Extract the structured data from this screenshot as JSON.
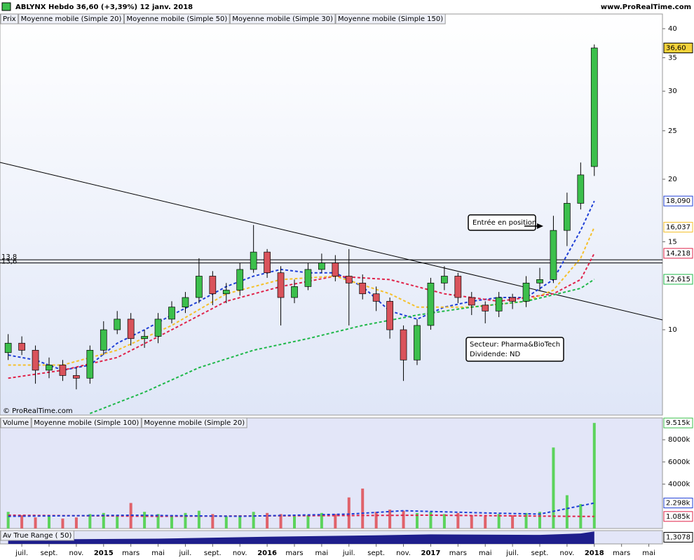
{
  "header": {
    "title": "ABLYNX   Hebdo   36,60 (+3,39%)   12 janv. 2018",
    "site": "www.ProRealTime.com"
  },
  "chart_data": [
    {
      "type": "candlestick",
      "legend": "Prix",
      "log_scale": true,
      "ylim": [
        6.75,
        42.8
      ],
      "yticks": [
        10,
        15,
        20,
        25,
        30,
        35,
        40
      ],
      "xlim": [
        -1.6,
        47
      ],
      "xticks": [
        {
          "value": 0,
          "label": "juil."
        },
        {
          "value": 2,
          "label": "sept."
        },
        {
          "value": 4,
          "label": "nov."
        },
        {
          "value": 6,
          "label": "2015"
        },
        {
          "value": 8,
          "label": "mars"
        },
        {
          "value": 10,
          "label": "mai"
        },
        {
          "value": 12,
          "label": "juil."
        },
        {
          "value": 14,
          "label": "sept."
        },
        {
          "value": 16,
          "label": "nov."
        },
        {
          "value": 18,
          "label": "2016"
        },
        {
          "value": 20,
          "label": "mars"
        },
        {
          "value": 22,
          "label": "mai"
        },
        {
          "value": 24,
          "label": "juil."
        },
        {
          "value": 26,
          "label": "sept."
        },
        {
          "value": 28,
          "label": "nov."
        },
        {
          "value": 30,
          "label": "2017"
        },
        {
          "value": 32,
          "label": "mars"
        },
        {
          "value": 34,
          "label": "mai"
        },
        {
          "value": 36,
          "label": "juil."
        },
        {
          "value": 38,
          "label": "sept."
        },
        {
          "value": 40,
          "label": "nov."
        },
        {
          "value": 42,
          "label": "2018"
        },
        {
          "value": 44,
          "label": "mars"
        },
        {
          "value": 46,
          "label": "mai"
        }
      ],
      "up_color": "#3cbf4c",
      "down_color": "#d9535b",
      "x": [
        -1,
        0,
        1,
        2,
        3,
        4,
        5,
        6,
        7,
        8,
        9,
        10,
        11,
        12,
        13,
        14,
        15,
        16,
        17,
        18,
        19,
        20,
        21,
        22,
        23,
        24,
        25,
        26,
        27,
        28,
        29,
        30,
        31,
        32,
        33,
        34,
        35,
        36,
        37,
        38,
        39,
        40,
        41,
        42
      ],
      "open": [
        9.0,
        9.4,
        9.1,
        8.3,
        8.5,
        8.1,
        8.0,
        9.1,
        10.0,
        10.5,
        9.6,
        9.7,
        10.5,
        11.1,
        11.6,
        12.8,
        11.8,
        12.0,
        13.2,
        14.3,
        13.0,
        11.6,
        12.2,
        13.2,
        13.6,
        12.8,
        12.4,
        11.8,
        11.4,
        10.0,
        8.7,
        10.2,
        12.4,
        12.8,
        11.6,
        11.2,
        10.9,
        11.6,
        11.4,
        12.4,
        12.6,
        15.8,
        17.9,
        21.2
      ],
      "high": [
        9.8,
        9.7,
        9.3,
        8.8,
        8.7,
        8.4,
        9.3,
        10.4,
        10.9,
        10.8,
        10.0,
        10.8,
        11.4,
        11.9,
        13.9,
        13.1,
        12.4,
        13.6,
        16.2,
        14.5,
        13.4,
        12.6,
        13.6,
        14.2,
        14.1,
        14.5,
        12.9,
        12.2,
        11.6,
        10.2,
        10.5,
        12.7,
        13.4,
        13.0,
        11.9,
        11.4,
        11.9,
        11.8,
        12.8,
        13.3,
        16.9,
        18.8,
        21.6,
        37.2
      ],
      "low": [
        8.7,
        8.9,
        7.8,
        8.0,
        7.9,
        7.6,
        7.8,
        8.9,
        9.8,
        9.3,
        9.2,
        9.4,
        10.3,
        10.8,
        11.3,
        11.2,
        11.3,
        11.7,
        13.0,
        12.7,
        10.2,
        11.3,
        12.0,
        13.0,
        12.5,
        10.2,
        11.5,
        10.9,
        9.6,
        7.9,
        8.5,
        10.0,
        12.0,
        11.3,
        10.7,
        10.3,
        10.6,
        11.0,
        11.1,
        12.0,
        12.4,
        14.7,
        17.4,
        20.3
      ],
      "close": [
        9.4,
        9.1,
        8.3,
        8.5,
        8.1,
        8.0,
        9.1,
        10.0,
        10.5,
        9.6,
        9.7,
        10.5,
        11.1,
        11.6,
        12.8,
        11.8,
        12.0,
        13.2,
        14.3,
        13.0,
        11.6,
        12.2,
        13.2,
        13.6,
        12.8,
        12.4,
        11.8,
        11.4,
        10.0,
        8.7,
        10.2,
        12.4,
        12.8,
        11.6,
        11.2,
        10.9,
        11.6,
        11.4,
        12.4,
        12.6,
        15.8,
        17.9,
        20.4,
        36.6
      ],
      "last_label": "36,60",
      "series": [
        {
          "name": "Moyenne mobile (Simple 20)",
          "color": "#1f3fd6",
          "x": [
            -1,
            1,
            3,
            5,
            7,
            9,
            11,
            13,
            15,
            17,
            19,
            21,
            23,
            25,
            27,
            29,
            31,
            33,
            35,
            37,
            39,
            41,
            42
          ],
          "values": [
            8.9,
            8.7,
            8.3,
            8.5,
            9.4,
            10.0,
            10.7,
            11.4,
            12.2,
            12.8,
            13.2,
            13.0,
            13.0,
            12.2,
            10.9,
            10.5,
            11.1,
            11.4,
            11.6,
            11.6,
            12.6,
            15.8,
            18.09
          ],
          "last_label": "18,090"
        },
        {
          "name": "Moyenne mobile (Simple 50)",
          "color": "#e0234a",
          "x": [
            -1,
            3,
            7,
            11,
            15,
            19,
            23,
            27,
            31,
            35,
            39,
            41,
            42
          ],
          "values": [
            8.0,
            8.3,
            8.8,
            10.0,
            11.4,
            12.2,
            12.8,
            12.6,
            11.8,
            11.4,
            11.8,
            12.6,
            14.218
          ],
          "last_label": "14,218"
        },
        {
          "name": "Moyenne mobile (Simple 30)",
          "color": "#f5c02a",
          "x": [
            -1,
            3,
            7,
            11,
            15,
            19,
            23,
            27,
            29,
            33,
            37,
            39,
            41,
            42
          ],
          "values": [
            8.5,
            8.5,
            9.1,
            10.2,
            11.8,
            12.6,
            12.8,
            11.8,
            11.1,
            11.1,
            11.4,
            12.0,
            13.9,
            16.037
          ],
          "last_label": "16,037"
        },
        {
          "name": "Moyenne mobile (Simple 150)",
          "color": "#1fb84a",
          "x": [
            5,
            9,
            13,
            17,
            21,
            25,
            29,
            33,
            37,
            41,
            42
          ],
          "values": [
            6.8,
            7.5,
            8.4,
            9.1,
            9.6,
            10.2,
            10.7,
            11.1,
            11.4,
            12.1,
            12.615
          ],
          "last_label": "12,615"
        }
      ],
      "levels": [
        {
          "value": 13.8,
          "label": "13,8"
        },
        {
          "value": 13.6,
          "label": "13,6"
        }
      ],
      "annotations": [
        "Entrée en position",
        "Secteur: Pharma&BioTech",
        "Dividende: ND"
      ],
      "copyright": "© ProRealTime.com"
    },
    {
      "type": "bar",
      "legend": "Volume",
      "ylim": [
        0,
        9970
      ],
      "yticks": [
        {
          "value": 4000,
          "label": "4000k"
        },
        {
          "value": 6000,
          "label": "6000k"
        },
        {
          "value": 8000,
          "label": "8000k"
        }
      ],
      "x": [
        -1,
        0,
        1,
        2,
        3,
        4,
        5,
        6,
        7,
        8,
        9,
        10,
        11,
        12,
        13,
        14,
        15,
        16,
        17,
        18,
        19,
        20,
        21,
        22,
        23,
        24,
        25,
        26,
        27,
        28,
        29,
        30,
        31,
        32,
        33,
        34,
        35,
        36,
        37,
        38,
        39,
        40,
        41,
        42
      ],
      "values": [
        1500,
        1200,
        1000,
        1100,
        900,
        1000,
        1300,
        1400,
        1200,
        2300,
        1500,
        1300,
        1200,
        1400,
        1600,
        1300,
        1100,
        1200,
        1500,
        1400,
        1300,
        1100,
        1200,
        1400,
        1300,
        2800,
        3600,
        1500,
        1700,
        1600,
        1400,
        1500,
        1300,
        1400,
        1200,
        1100,
        1300,
        1200,
        1400,
        1500,
        7300,
        3000,
        2200,
        9515
      ],
      "last_label": "9.515k",
      "series": [
        {
          "name": "Moyenne mobile (Simple 100)",
          "color": "#e0234a",
          "x": [
            -1,
            10,
            20,
            30,
            40,
            42
          ],
          "values": [
            1200,
            1100,
            1150,
            1200,
            1100,
            1085
          ],
          "last_label": "1.085k"
        },
        {
          "name": "Moyenne mobile (Simple 20)",
          "color": "#1f3fd6",
          "x": [
            -1,
            8,
            16,
            24,
            28,
            34,
            38,
            40,
            42
          ],
          "values": [
            1100,
            1200,
            1100,
            1300,
            1600,
            1400,
            1300,
            1800,
            2298
          ],
          "last_label": "2.298k"
        }
      ]
    },
    {
      "type": "area",
      "legend": "Av True Range ( 50)",
      "color": "#1e1e8c",
      "ylim": [
        0,
        1.4
      ],
      "x": [
        -1,
        10,
        18,
        26,
        30,
        38,
        41,
        42
      ],
      "values": [
        0.45,
        0.55,
        0.75,
        0.9,
        1.0,
        0.95,
        1.1,
        1.3078
      ],
      "last_label": "1,3078"
    }
  ]
}
